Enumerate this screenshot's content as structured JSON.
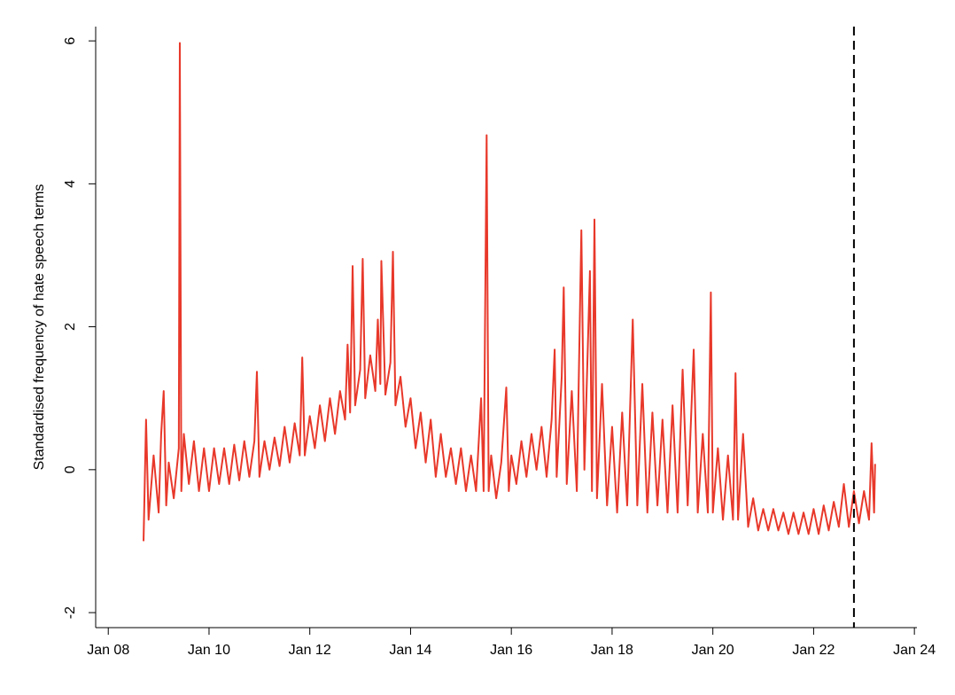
{
  "chart_data": {
    "type": "line",
    "y_label": "Standardised frequency of hate speech terms",
    "xlim": [
      2007.75,
      2024.05
    ],
    "ylim": [
      -2.21,
      6.2
    ],
    "xticks": [
      {
        "value": 2008,
        "label": "Jan 08"
      },
      {
        "value": 2010,
        "label": "Jan 10"
      },
      {
        "value": 2012,
        "label": "Jan 12"
      },
      {
        "value": 2014,
        "label": "Jan 14"
      },
      {
        "value": 2016,
        "label": "Jan 16"
      },
      {
        "value": 2018,
        "label": "Jan 18"
      },
      {
        "value": 2020,
        "label": "Jan 20"
      },
      {
        "value": 2022,
        "label": "Jan 22"
      },
      {
        "value": 2024,
        "label": "Jan 24"
      }
    ],
    "yticks": [
      -2,
      0,
      2,
      4,
      6
    ],
    "vline": 2022.8,
    "vline_color": "#000000",
    "grid": false,
    "series": [
      {
        "color": "#e8382a",
        "x": [
          2008.7,
          2008.75,
          2008.8,
          2008.9,
          2009.0,
          2009.05,
          2009.1,
          2009.15,
          2009.2,
          2009.3,
          2009.4,
          2009.42,
          2009.45,
          2009.5,
          2009.6,
          2009.7,
          2009.8,
          2009.9,
          2010.0,
          2010.1,
          2010.2,
          2010.3,
          2010.4,
          2010.5,
          2010.6,
          2010.7,
          2010.8,
          2010.9,
          2010.95,
          2011.0,
          2011.1,
          2011.2,
          2011.3,
          2011.4,
          2011.5,
          2011.6,
          2011.7,
          2011.8,
          2011.85,
          2011.9,
          2012.0,
          2012.1,
          2012.2,
          2012.3,
          2012.4,
          2012.5,
          2012.6,
          2012.7,
          2012.75,
          2012.8,
          2012.85,
          2012.9,
          2013.0,
          2013.05,
          2013.1,
          2013.2,
          2013.3,
          2013.35,
          2013.4,
          2013.42,
          2013.5,
          2013.6,
          2013.65,
          2013.7,
          2013.8,
          2013.9,
          2014.0,
          2014.1,
          2014.2,
          2014.3,
          2014.4,
          2014.5,
          2014.6,
          2014.7,
          2014.8,
          2014.9,
          2015.0,
          2015.1,
          2015.2,
          2015.3,
          2015.4,
          2015.45,
          2015.51,
          2015.55,
          2015.6,
          2015.7,
          2015.8,
          2015.9,
          2015.95,
          2016.0,
          2016.1,
          2016.2,
          2016.3,
          2016.4,
          2016.5,
          2016.6,
          2016.7,
          2016.8,
          2016.86,
          2016.9,
          2017.0,
          2017.04,
          2017.1,
          2017.2,
          2017.3,
          2017.39,
          2017.45,
          2017.56,
          2017.6,
          2017.65,
          2017.7,
          2017.8,
          2017.9,
          2018.0,
          2018.1,
          2018.2,
          2018.3,
          2018.41,
          2018.5,
          2018.6,
          2018.7,
          2018.8,
          2018.9,
          2019.0,
          2019.1,
          2019.2,
          2019.3,
          2019.4,
          2019.5,
          2019.62,
          2019.7,
          2019.8,
          2019.9,
          2019.96,
          2020.0,
          2020.1,
          2020.2,
          2020.3,
          2020.4,
          2020.45,
          2020.5,
          2020.6,
          2020.7,
          2020.8,
          2020.9,
          2021.0,
          2021.1,
          2021.2,
          2021.3,
          2021.4,
          2021.5,
          2021.6,
          2021.7,
          2021.8,
          2021.9,
          2022.0,
          2022.1,
          2022.2,
          2022.3,
          2022.4,
          2022.5,
          2022.6,
          2022.7,
          2022.8,
          2022.9,
          2023.0,
          2023.1,
          2023.15,
          2023.2,
          2023.22
        ],
        "values": [
          -1.0,
          0.7,
          -0.7,
          0.2,
          -0.6,
          0.5,
          1.1,
          -0.5,
          0.1,
          -0.4,
          0.3,
          5.97,
          -0.3,
          0.5,
          -0.2,
          0.4,
          -0.3,
          0.3,
          -0.3,
          0.3,
          -0.2,
          0.3,
          -0.2,
          0.35,
          -0.15,
          0.4,
          -0.1,
          0.4,
          1.37,
          -0.1,
          0.4,
          0.0,
          0.45,
          0.05,
          0.6,
          0.1,
          0.65,
          0.2,
          1.57,
          0.2,
          0.75,
          0.3,
          0.9,
          0.4,
          1.0,
          0.5,
          1.1,
          0.7,
          1.75,
          0.8,
          2.85,
          0.9,
          1.4,
          2.95,
          1.0,
          1.6,
          1.1,
          2.1,
          1.2,
          2.92,
          1.05,
          1.5,
          3.05,
          0.9,
          1.3,
          0.6,
          1.0,
          0.3,
          0.8,
          0.1,
          0.7,
          -0.1,
          0.5,
          -0.1,
          0.3,
          -0.2,
          0.3,
          -0.3,
          0.2,
          -0.3,
          1.0,
          -0.3,
          4.68,
          -0.3,
          0.2,
          -0.4,
          0.1,
          1.15,
          -0.3,
          0.2,
          -0.2,
          0.4,
          -0.1,
          0.5,
          0.0,
          0.6,
          -0.1,
          0.7,
          1.68,
          -0.1,
          1.3,
          2.55,
          -0.2,
          1.1,
          -0.3,
          3.35,
          0.0,
          2.78,
          -0.3,
          3.5,
          -0.4,
          1.2,
          -0.5,
          0.6,
          -0.6,
          0.8,
          -0.5,
          2.1,
          -0.5,
          1.2,
          -0.6,
          0.8,
          -0.5,
          0.7,
          -0.6,
          0.9,
          -0.6,
          1.4,
          -0.5,
          1.68,
          -0.6,
          0.5,
          -0.6,
          2.48,
          -0.6,
          0.3,
          -0.7,
          0.2,
          -0.7,
          1.35,
          -0.7,
          0.5,
          -0.8,
          -0.4,
          -0.85,
          -0.55,
          -0.85,
          -0.55,
          -0.85,
          -0.6,
          -0.9,
          -0.6,
          -0.9,
          -0.6,
          -0.9,
          -0.55,
          -0.9,
          -0.5,
          -0.85,
          -0.45,
          -0.8,
          -0.2,
          -0.8,
          -0.3,
          -0.75,
          -0.3,
          -0.7,
          0.37,
          -0.6,
          0.08
        ]
      }
    ]
  }
}
